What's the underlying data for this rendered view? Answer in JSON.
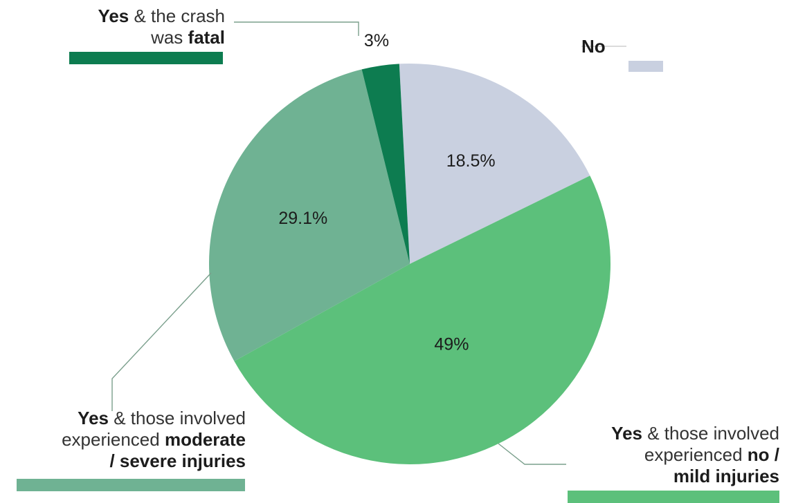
{
  "chart_data": {
    "type": "pie",
    "title": "",
    "slices": [
      {
        "key": "no",
        "value": 18.5,
        "label": "18.5%",
        "color": "#c9d0e0",
        "legend": [
          [
            "No"
          ]
        ]
      },
      {
        "key": "mild",
        "value": 49,
        "label": "49%",
        "color": "#5cc07b",
        "legend": [
          [
            "Yes",
            " & those involved"
          ],
          [
            "experienced ",
            "no /"
          ],
          [
            "mild injuries"
          ]
        ]
      },
      {
        "key": "severe",
        "value": 29.1,
        "label": "29.1%",
        "color": "#6fb293",
        "legend": [
          [
            "Yes",
            " & those involved"
          ],
          [
            "experienced ",
            "moderate"
          ],
          [
            "/ severe injuries"
          ]
        ]
      },
      {
        "key": "fatal",
        "value": 3,
        "label": "3%",
        "color": "#0d7c50",
        "legend": [
          [
            "Yes",
            " & the crash"
          ],
          [
            "was ",
            "fatal"
          ]
        ]
      }
    ],
    "start_angle_deg": -3,
    "direction": "clockwise"
  }
}
